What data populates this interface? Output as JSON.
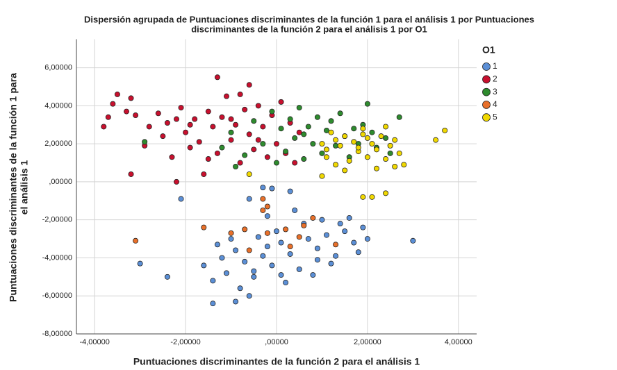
{
  "chart_data": {
    "type": "scatter",
    "title": [
      "Dispersión agrupada de Puntuaciones discriminantes de la función 1 para el análisis 1 por Puntuaciones",
      "discriminantes de la función 2 para el análisis 1 por O1"
    ],
    "xlabel": "Puntuaciones discriminantes de la función 2 para el análisis 1",
    "ylabel": [
      "Puntuaciones discriminantes de la función 1 para",
      "el análisis 1"
    ],
    "legend_title": "O1",
    "xlim": [
      -4.4,
      4.4
    ],
    "ylim": [
      -8,
      7.5
    ],
    "xticks": [
      {
        "value": -4,
        "label": "-4,00000"
      },
      {
        "value": -2,
        "label": "-2,00000"
      },
      {
        "value": 0,
        "label": ",00000"
      },
      {
        "value": 2,
        "label": "2,00000"
      },
      {
        "value": 4,
        "label": "4,00000"
      }
    ],
    "yticks": [
      {
        "value": -8,
        "label": "-8,00000"
      },
      {
        "value": -6,
        "label": "-6,00000"
      },
      {
        "value": -4,
        "label": "-4,00000"
      },
      {
        "value": -2,
        "label": "-2,00000"
      },
      {
        "value": 0,
        "label": ",00000"
      },
      {
        "value": 2,
        "label": "2,00000"
      },
      {
        "value": 4,
        "label": "4,00000"
      },
      {
        "value": 6,
        "label": "6,00000"
      }
    ],
    "grid": true,
    "legend": "right",
    "series": [
      {
        "name": "1",
        "color": "#5b8fd6",
        "x": [
          -1.3,
          -1.1,
          -0.9,
          -0.7,
          -0.5,
          -0.3,
          -0.1,
          0.1,
          0.3,
          0.5,
          0.7,
          0.9,
          1.1,
          1.3,
          1.5,
          1.7,
          1.9,
          1.2,
          0.6,
          0.0,
          -0.4,
          -0.8,
          -1.2,
          -1.4,
          -0.6,
          0.2,
          0.8,
          1.0,
          1.6,
          0.4,
          -0.2,
          -0.6,
          0.3,
          -0.3,
          -0.1,
          -2.1,
          -3.0,
          -2.4,
          3.0,
          -1.4,
          -0.9,
          1.8,
          1.4,
          -1.0,
          -0.5,
          0.9,
          2.0,
          -1.6,
          0.1,
          -0.2
        ],
        "values": [
          -3.3,
          -4.8,
          -3.6,
          -4.2,
          -5.0,
          -3.9,
          -4.4,
          -3.2,
          -3.8,
          -4.6,
          -3.0,
          -3.5,
          -2.8,
          -3.9,
          -2.6,
          -3.2,
          -2.4,
          -4.3,
          -2.2,
          -2.6,
          -2.9,
          -5.6,
          -4.0,
          -5.2,
          -6.0,
          -5.3,
          -4.9,
          -2.0,
          -1.9,
          -1.5,
          -1.8,
          -0.9,
          -0.5,
          -0.3,
          -0.35,
          -0.9,
          -4.3,
          -5.0,
          -3.1,
          -6.4,
          -6.3,
          -3.7,
          -2.2,
          -3.0,
          -4.7,
          -4.1,
          -3.0,
          -4.4,
          -4.9,
          -3.4
        ]
      },
      {
        "name": "2",
        "color": "#c8102e",
        "x": [
          -3.7,
          -3.6,
          -3.5,
          -3.3,
          -3.2,
          -3.1,
          -3.2,
          -2.8,
          -2.6,
          -2.5,
          -2.4,
          -2.3,
          -2.2,
          -2.1,
          -2.0,
          -1.9,
          -1.8,
          -1.7,
          -1.6,
          -1.5,
          -1.4,
          -1.3,
          -1.2,
          -1.1,
          -1.0,
          -0.9,
          -0.8,
          -0.7,
          -0.6,
          -0.5,
          -0.4,
          -0.3,
          -0.2,
          -0.1,
          0.0,
          0.1,
          0.2,
          0.3,
          0.4,
          0.5,
          -1.3,
          -0.8,
          -0.6,
          -3.8,
          -2.9,
          -1.9,
          -1.0,
          -0.4,
          -1.5,
          -2.2
        ],
        "values": [
          3.4,
          4.1,
          4.6,
          3.7,
          4.4,
          3.5,
          0.4,
          2.9,
          3.6,
          2.4,
          3.1,
          1.3,
          0.0,
          3.9,
          2.6,
          1.8,
          3.3,
          2.1,
          0.4,
          3.7,
          2.9,
          1.5,
          3.4,
          4.5,
          2.2,
          3.0,
          1.0,
          3.8,
          2.5,
          1.7,
          4.0,
          2.9,
          1.3,
          3.5,
          2.0,
          4.2,
          1.5,
          3.1,
          1.0,
          2.6,
          5.5,
          4.6,
          5.1,
          2.9,
          1.9,
          3.0,
          3.3,
          2.2,
          1.2,
          3.3
        ]
      },
      {
        "name": "3",
        "color": "#2e8b2e",
        "x": [
          -2.9,
          -1.2,
          -1.0,
          -0.7,
          -0.5,
          -0.3,
          -0.1,
          0.1,
          0.2,
          0.3,
          0.4,
          0.5,
          0.6,
          0.7,
          0.8,
          0.9,
          1.0,
          1.1,
          1.2,
          1.3,
          1.4,
          1.5,
          1.6,
          1.7,
          1.8,
          2.0,
          2.1,
          2.2,
          2.4,
          2.5,
          2.7,
          1.9,
          -0.9,
          0.0,
          0.6
        ],
        "values": [
          2.1,
          1.8,
          2.6,
          1.4,
          3.2,
          2.0,
          3.7,
          2.8,
          1.6,
          3.3,
          2.3,
          3.9,
          1.2,
          2.9,
          2.0,
          3.4,
          1.5,
          2.7,
          3.2,
          1.9,
          3.6,
          2.4,
          1.3,
          2.8,
          2.0,
          4.1,
          2.6,
          1.8,
          2.3,
          1.5,
          3.4,
          3.0,
          0.8,
          1.0,
          2.5
        ]
      },
      {
        "name": "4",
        "color": "#e8702a",
        "x": [
          -3.1,
          -1.6,
          -0.7,
          -0.2,
          -0.6,
          0.2,
          0.5,
          -0.3,
          -1.0,
          0.8,
          1.3,
          0.3,
          -0.3,
          0.6,
          -0.2
        ],
        "values": [
          -3.1,
          -2.4,
          -2.5,
          -1.3,
          -3.6,
          -2.5,
          -2.9,
          -1.5,
          -2.7,
          -1.9,
          -3.3,
          -3.4,
          -0.9,
          -2.3,
          -2.7
        ]
      },
      {
        "name": "5",
        "color": "#f0d800",
        "x": [
          1.0,
          1.1,
          1.2,
          1.3,
          1.4,
          1.5,
          1.6,
          1.7,
          1.8,
          1.9,
          2.0,
          2.1,
          2.2,
          2.3,
          2.4,
          2.5,
          2.6,
          2.7,
          2.8,
          2.6,
          2.2,
          1.5,
          1.0,
          1.3,
          1.9,
          2.4,
          3.5,
          3.7,
          -0.6,
          1.9,
          2.4,
          2.1,
          1.8,
          2.0,
          1.1
        ],
        "values": [
          2.0,
          1.3,
          2.6,
          0.9,
          1.9,
          2.4,
          1.1,
          2.1,
          1.6,
          2.5,
          1.3,
          2.0,
          1.7,
          2.4,
          1.2,
          1.9,
          2.2,
          1.5,
          0.9,
          0.8,
          0.7,
          0.6,
          0.3,
          2.2,
          2.8,
          2.9,
          2.2,
          2.7,
          0.4,
          -0.8,
          -0.6,
          -0.8,
          1.8,
          2.3,
          1.7
        ]
      }
    ]
  }
}
